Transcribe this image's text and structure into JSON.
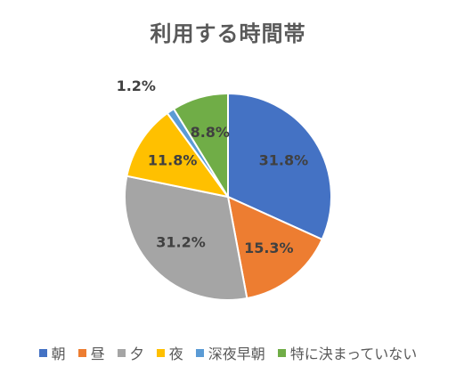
{
  "chart_data": {
    "type": "pie",
    "title": "利用する時間帯",
    "categories": [
      "朝",
      "昼",
      "夕",
      "夜",
      "深夜早朝",
      "特に決まっていない"
    ],
    "values": [
      31.8,
      15.3,
      31.2,
      11.8,
      1.2,
      8.8
    ],
    "data_labels": [
      "31.8%",
      "15.3%",
      "31.2%",
      "11.8%",
      "1.2%",
      "8.8%"
    ],
    "colors": [
      "#4472C4",
      "#ED7D31",
      "#A5A5A5",
      "#FFC000",
      "#5B9BD5",
      "#70AD47"
    ],
    "legend_position": "bottom"
  }
}
